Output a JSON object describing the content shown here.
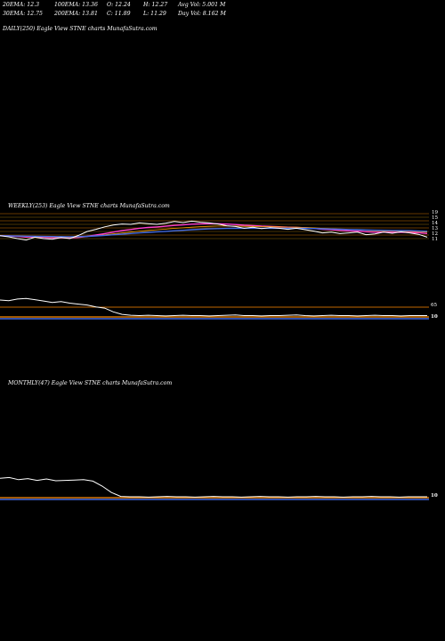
{
  "header": {
    "row1": [
      "20EMA: 12.3",
      "100EMA: 13.36",
      "O: 12.24",
      "H: 12.27",
      "Avg Vol: 5.001 M"
    ],
    "row2": [
      "30EMA: 12.75",
      "200EMA: 13.81",
      "C: 11.89",
      "L: 11.29",
      "Day Vol: 8.162  M"
    ]
  },
  "panels": {
    "daily_label": "DAILY(250) Eagle   View  STNE charts MunafaSutra.com",
    "weekly_label": "WEEKLY(253) Eagle   View  STNE charts MunafaSutra.com",
    "monthly_label": "MONTHLY(47) Eagle   View  STNE charts MunafaSutra.com"
  },
  "chart_data": [
    {
      "type": "line",
      "name": "weekly price",
      "y_ticks": [
        "19",
        "15",
        "14",
        "13",
        "12",
        "11"
      ],
      "colors": {
        "price": "#ffffff",
        "ema_lines": [
          "#ff3fd0",
          "#ffa500",
          "#c0c0c0",
          "#4169e1"
        ]
      },
      "values": [
        12.8,
        12.5,
        12.0,
        11.6,
        12.4,
        12.0,
        11.8,
        12.3,
        12.0,
        12.9,
        14.0,
        14.6,
        15.3,
        15.8,
        16.1,
        16.0,
        16.4,
        16.2,
        16.0,
        16.3,
        16.8,
        16.5,
        16.9,
        16.6,
        16.4,
        16.1,
        15.6,
        15.4,
        14.9,
        15.2,
        14.8,
        15.1,
        14.9,
        14.6,
        14.9,
        14.5,
        14.1,
        13.6,
        13.8,
        13.4,
        13.6,
        13.8,
        13.1,
        13.3,
        13.8,
        13.5,
        13.9,
        13.6,
        13.2,
        12.4
      ]
    },
    {
      "type": "line",
      "name": "weekly indicator",
      "y_ticks": [
        "65",
        "10"
      ],
      "colors": {
        "line": "#ffffff",
        "band": "#ff8c00",
        "base": "#4169e1"
      },
      "values": [
        60,
        58,
        63,
        65,
        61,
        57,
        52,
        55,
        50,
        47,
        44,
        38,
        34,
        22,
        14,
        11,
        10,
        11,
        10,
        9,
        10,
        11,
        10,
        10,
        9,
        10,
        11,
        12,
        10,
        10,
        9,
        10,
        10,
        11,
        12,
        10,
        9,
        10,
        11,
        10,
        10,
        9,
        10,
        11,
        10,
        10,
        9,
        10,
        10,
        10
      ]
    },
    {
      "type": "line",
      "name": "monthly indicator",
      "y_ticks": [
        "10"
      ],
      "colors": {
        "line": "#ffffff",
        "band": "#ff8c00",
        "base": "#4169e1"
      },
      "values": [
        62,
        64,
        58,
        61,
        56,
        60,
        55,
        56,
        57,
        58,
        54,
        40,
        22,
        11,
        10,
        10,
        9,
        10,
        11,
        10,
        10,
        9,
        10,
        11,
        10,
        10,
        9,
        10,
        11,
        10,
        10,
        9,
        10,
        10,
        11,
        10,
        10,
        9,
        10,
        10,
        11,
        10,
        10,
        9,
        10,
        10,
        10
      ]
    }
  ]
}
